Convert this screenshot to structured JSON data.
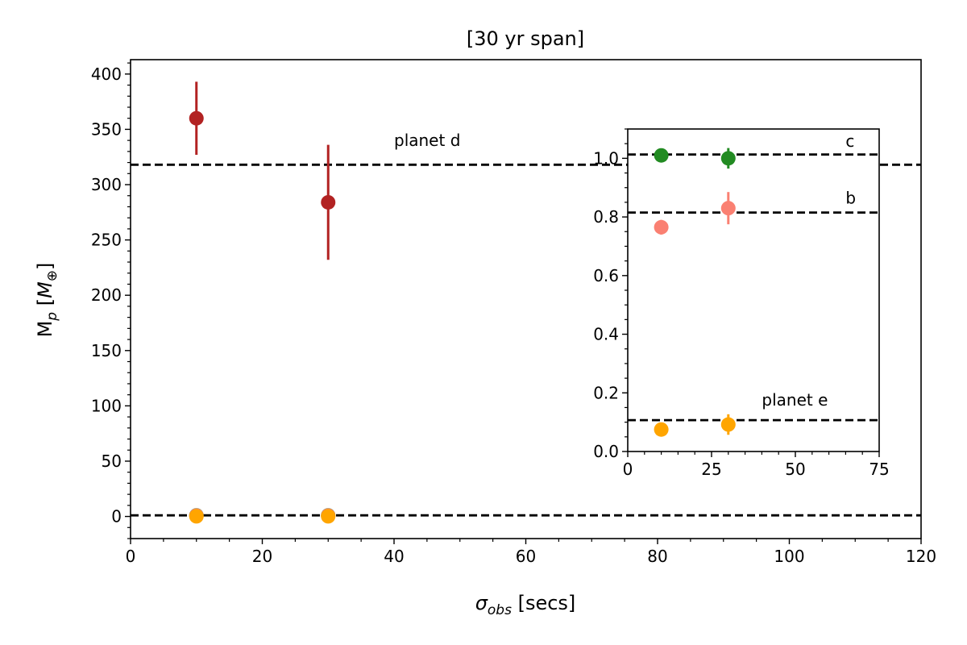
{
  "chart_data": [
    {
      "panel": "main",
      "type": "scatter",
      "title": "[30 yr span]",
      "xlabel": {
        "base": "σ",
        "sub": "obs",
        "rest": " [secs]"
      },
      "ylabel": {
        "base": "M",
        "sub": "p",
        "rest_open": " [",
        "unit": "M",
        "unit_sub": "⊕",
        "rest_close": "]"
      },
      "xlim": [
        0,
        120
      ],
      "ylim": [
        -20,
        413
      ],
      "xticks": [
        0,
        20,
        40,
        60,
        80,
        100,
        120
      ],
      "yticks": [
        0,
        50,
        100,
        150,
        200,
        250,
        300,
        350,
        400
      ],
      "grid": false,
      "series": [
        {
          "color": "#b22222",
          "points": [
            {
              "x": 10,
              "y": 360,
              "yerr": 33
            },
            {
              "x": 30,
              "y": 284,
              "yerr": 52
            }
          ]
        },
        {
          "color": "#228b22",
          "points": [
            {
              "x": 10,
              "y": 1.0,
              "yerr": 0
            },
            {
              "x": 30,
              "y": 1.0,
              "yerr": 0
            }
          ]
        },
        {
          "color": "#fa8072",
          "points": [
            {
              "x": 10,
              "y": 0.8,
              "yerr": 0
            },
            {
              "x": 30,
              "y": 0.8,
              "yerr": 0
            }
          ]
        },
        {
          "color": "#ffa500",
          "points": [
            {
              "x": 10,
              "y": 0.1,
              "yerr": 0
            },
            {
              "x": 30,
              "y": 0.1,
              "yerr": 0
            }
          ]
        }
      ],
      "reference_lines": [
        {
          "y": 318,
          "label": "planet d",
          "label_x": 40,
          "label_y": 335
        },
        {
          "y": 1.0,
          "label": ""
        }
      ]
    },
    {
      "panel": "inset",
      "type": "scatter",
      "xlim": [
        0,
        75
      ],
      "ylim": [
        0,
        1.1
      ],
      "xticks": [
        0,
        25,
        50,
        75
      ],
      "yticks": [
        0.0,
        0.2,
        0.4,
        0.6,
        0.8,
        1.0
      ],
      "grid": false,
      "series": [
        {
          "color": "#228b22",
          "points": [
            {
              "x": 10,
              "y": 1.01,
              "yerr": 0
            },
            {
              "x": 30,
              "y": 1.0,
              "yerr": 0.035
            }
          ]
        },
        {
          "color": "#fa8072",
          "points": [
            {
              "x": 10,
              "y": 0.765,
              "yerr": 0.025
            },
            {
              "x": 30,
              "y": 0.83,
              "yerr": 0.055
            }
          ]
        },
        {
          "color": "#ffa500",
          "points": [
            {
              "x": 10,
              "y": 0.075,
              "yerr": 0
            },
            {
              "x": 30,
              "y": 0.092,
              "yerr": 0.035
            }
          ]
        }
      ],
      "reference_lines": [
        {
          "y": 1.013,
          "label": "c",
          "label_x": 65,
          "label_y": 1.04
        },
        {
          "y": 0.815,
          "label": "b",
          "label_x": 65,
          "label_y": 0.845
        },
        {
          "y": 0.107,
          "label": "planet e",
          "label_x": 40,
          "label_y": 0.157
        }
      ]
    }
  ]
}
